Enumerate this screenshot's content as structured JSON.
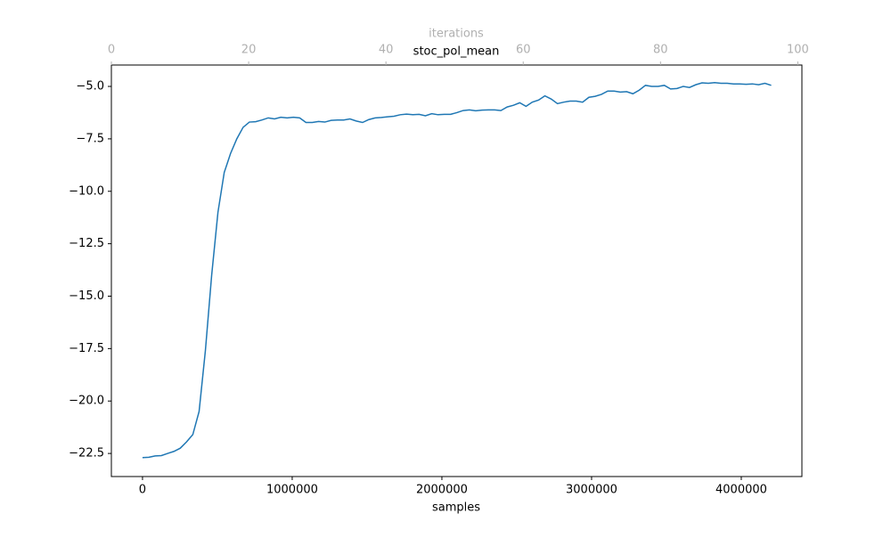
{
  "chart_data": {
    "type": "line",
    "title": "stoc_pol_mean",
    "xlabel": "samples",
    "x2label": "iterations",
    "x": [
      0,
      42000,
      84000,
      126000,
      168000,
      210000,
      252000,
      294000,
      336000,
      378000,
      420000,
      462000,
      504000,
      546000,
      588000,
      630000,
      672000,
      714000,
      756000,
      798000,
      840000,
      882000,
      924000,
      966000,
      1008000,
      1050000,
      1092000,
      1134000,
      1176000,
      1218000,
      1260000,
      1302000,
      1344000,
      1386000,
      1428000,
      1470000,
      1512000,
      1554000,
      1596000,
      1638000,
      1680000,
      1722000,
      1764000,
      1806000,
      1848000,
      1890000,
      1932000,
      1974000,
      2016000,
      2058000,
      2100000,
      2142000,
      2184000,
      2226000,
      2268000,
      2310000,
      2352000,
      2394000,
      2436000,
      2478000,
      2520000,
      2562000,
      2604000,
      2646000,
      2688000,
      2730000,
      2772000,
      2814000,
      2856000,
      2898000,
      2940000,
      2982000,
      3024000,
      3066000,
      3108000,
      3150000,
      3192000,
      3234000,
      3276000,
      3318000,
      3360000,
      3402000,
      3444000,
      3486000,
      3528000,
      3570000,
      3612000,
      3654000,
      3696000,
      3738000,
      3780000,
      3822000,
      3864000,
      3906000,
      3948000,
      3990000,
      4032000,
      4074000,
      4116000,
      4158000,
      4200000
    ],
    "series": [
      {
        "name": "stoc_pol_mean",
        "color": "#1f77b4",
        "values": [
          -22.7,
          -22.68,
          -22.62,
          -22.6,
          -22.5,
          -22.4,
          -22.25,
          -21.95,
          -21.6,
          -20.5,
          -17.6,
          -14.0,
          -11.0,
          -9.1,
          -8.2,
          -7.5,
          -6.95,
          -6.7,
          -6.68,
          -6.6,
          -6.5,
          -6.55,
          -6.47,
          -6.5,
          -6.47,
          -6.5,
          -6.72,
          -6.72,
          -6.67,
          -6.7,
          -6.62,
          -6.6,
          -6.6,
          -6.55,
          -6.65,
          -6.72,
          -6.58,
          -6.5,
          -6.48,
          -6.45,
          -6.42,
          -6.35,
          -6.32,
          -6.35,
          -6.33,
          -6.4,
          -6.3,
          -6.35,
          -6.33,
          -6.33,
          -6.25,
          -6.15,
          -6.12,
          -6.16,
          -6.13,
          -6.12,
          -6.12,
          -6.15,
          -5.98,
          -5.9,
          -5.78,
          -5.95,
          -5.75,
          -5.65,
          -5.45,
          -5.6,
          -5.82,
          -5.75,
          -5.7,
          -5.7,
          -5.75,
          -5.52,
          -5.47,
          -5.38,
          -5.22,
          -5.22,
          -5.27,
          -5.25,
          -5.35,
          -5.18,
          -4.95,
          -5.0,
          -5.0,
          -4.95,
          -5.12,
          -5.1,
          -5.0,
          -5.05,
          -4.92,
          -4.83,
          -4.85,
          -4.82,
          -4.85,
          -4.85,
          -4.88,
          -4.88,
          -4.9,
          -4.88,
          -4.92,
          -4.85,
          -4.95
        ]
      }
    ],
    "xlim": [
      -208000,
      4405000
    ],
    "xticks": [
      0,
      1000000,
      2000000,
      3000000,
      4000000
    ],
    "x2lim": [
      0,
      100.6
    ],
    "x2ticks": [
      0,
      20,
      40,
      60,
      80,
      100
    ],
    "ylim": [
      -23.6,
      -3.98
    ],
    "yticks": [
      {
        "value": -22.5,
        "label": "−22.5"
      },
      {
        "value": -20,
        "label": "−20.0"
      },
      {
        "value": -17.5,
        "label": "−17.5"
      },
      {
        "value": -15,
        "label": "−15.0"
      },
      {
        "value": -12.5,
        "label": "−12.5"
      },
      {
        "value": -10,
        "label": "−10.0"
      },
      {
        "value": -7.5,
        "label": "−7.5"
      },
      {
        "value": -5,
        "label": "−5.0"
      }
    ],
    "grid": false
  }
}
